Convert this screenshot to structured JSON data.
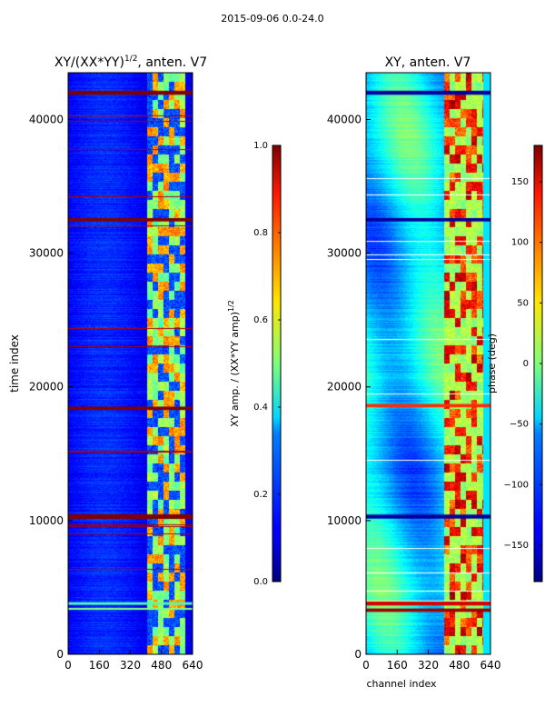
{
  "figure": {
    "suptitle": "2015-09-06 0.0-24.0"
  },
  "chart_data": [
    {
      "type": "heatmap",
      "title": "XY/(XX*YY)^1/2, anten. V7",
      "xlabel": "",
      "ylabel": "time index",
      "xlim": [
        0,
        640
      ],
      "ylim": [
        0,
        43500
      ],
      "x_ticks": [
        0,
        160,
        320,
        480,
        640
      ],
      "y_ticks": [
        0,
        10000,
        20000,
        30000,
        40000
      ],
      "colormap": "jet",
      "colorbar": {
        "label": "XY amp. / (XX*YY amp)^1/2",
        "range": [
          0.0,
          1.0
        ],
        "ticks": [
          "0.0",
          "0.2",
          "0.4",
          "0.6",
          "0.8",
          "1.0"
        ]
      },
      "bright_band_x_range": [
        405,
        600
      ],
      "full_width_flag_rows": [
        {
          "y": 42000,
          "value": 1.0,
          "thickness": 300
        },
        {
          "y": 32500,
          "value": 1.0,
          "thickness": 250
        },
        {
          "y": 18400,
          "value": 1.0,
          "thickness": 250
        },
        {
          "y": 10300,
          "value": 1.0,
          "thickness": 350
        },
        {
          "y": 3800,
          "value": 0.45,
          "thickness": 200
        },
        {
          "y": 3400,
          "value": 0.5,
          "thickness": 150
        }
      ]
    },
    {
      "type": "heatmap",
      "title": "XY, anten. V7",
      "xlabel": "channel index",
      "ylabel": "",
      "xlim": [
        0,
        640
      ],
      "ylim": [
        0,
        43500
      ],
      "x_ticks": [
        0,
        160,
        320,
        480,
        640
      ],
      "y_ticks": [
        0,
        10000,
        20000,
        30000,
        40000
      ],
      "colormap": "jet",
      "colorbar": {
        "label": "phase (deg)",
        "range": [
          -180,
          180
        ],
        "ticks": [
          "−150",
          "−100",
          "−50",
          "0",
          "50",
          "100",
          "150"
        ]
      },
      "bright_band_x_range": [
        400,
        600
      ],
      "full_width_flag_rows": [
        {
          "y": 42000,
          "value": -170,
          "thickness": 300
        },
        {
          "y": 32500,
          "value": -170,
          "thickness": 250
        },
        {
          "y": 18600,
          "value": 120,
          "thickness": 250
        },
        {
          "y": 10300,
          "value": -170,
          "thickness": 300
        },
        {
          "y": 3800,
          "value": 150,
          "thickness": 300
        },
        {
          "y": 3300,
          "value": 170,
          "thickness": 250
        }
      ]
    }
  ]
}
